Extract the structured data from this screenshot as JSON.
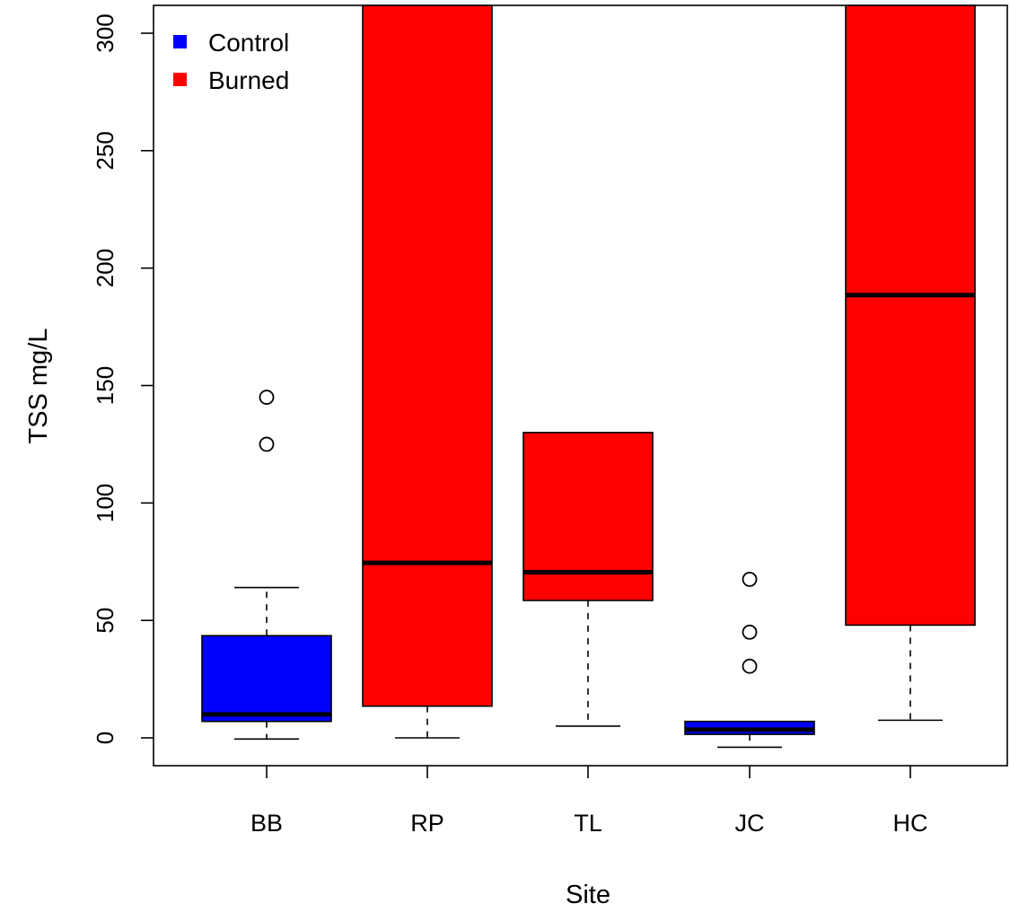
{
  "chart_data": {
    "type": "boxplot",
    "xlabel": "Site",
    "ylabel": "TSS mg/L",
    "ylim": [
      -12,
      312
    ],
    "y_ticks": [
      0,
      50,
      100,
      150,
      200,
      250,
      300
    ],
    "y_tick_labels": [
      "0",
      "50",
      "100",
      "150",
      "200",
      "250",
      "300"
    ],
    "categories": [
      "BB",
      "RP",
      "TL",
      "JC",
      "HC"
    ],
    "legend": {
      "position": "top-left",
      "entries": [
        {
          "name": "Control",
          "color": "#0000ff"
        },
        {
          "name": "Burned",
          "color": "#ff0000"
        }
      ]
    },
    "boxes": [
      {
        "site": "BB",
        "group": "Control",
        "color": "#0000ff",
        "whisker_low": -0.5,
        "q1": 7,
        "median": 10,
        "q3": 43.5,
        "whisker_high": 64,
        "outliers": [
          125,
          145
        ]
      },
      {
        "site": "RP",
        "group": "Burned",
        "color": "#ff0000",
        "whisker_low": 0,
        "q1": 13.5,
        "median": 74.5,
        "q3": 312,
        "whisker_high": 312,
        "outliers": []
      },
      {
        "site": "TL",
        "group": "Burned",
        "color": "#ff0000",
        "whisker_low": 5,
        "q1": 58.5,
        "median": 70.5,
        "q3": 130,
        "whisker_high": 130,
        "outliers": []
      },
      {
        "site": "JC",
        "group": "Control",
        "color": "#0000ff",
        "whisker_low": -4,
        "q1": 1.5,
        "median": 3.5,
        "q3": 7,
        "whisker_high": 7,
        "outliers": [
          30.5,
          45,
          67.5
        ]
      },
      {
        "site": "HC",
        "group": "Burned",
        "color": "#ff0000",
        "whisker_low": 7.5,
        "q1": 48,
        "median": 188.5,
        "q3": 312,
        "whisker_high": 312,
        "outliers": []
      }
    ]
  }
}
